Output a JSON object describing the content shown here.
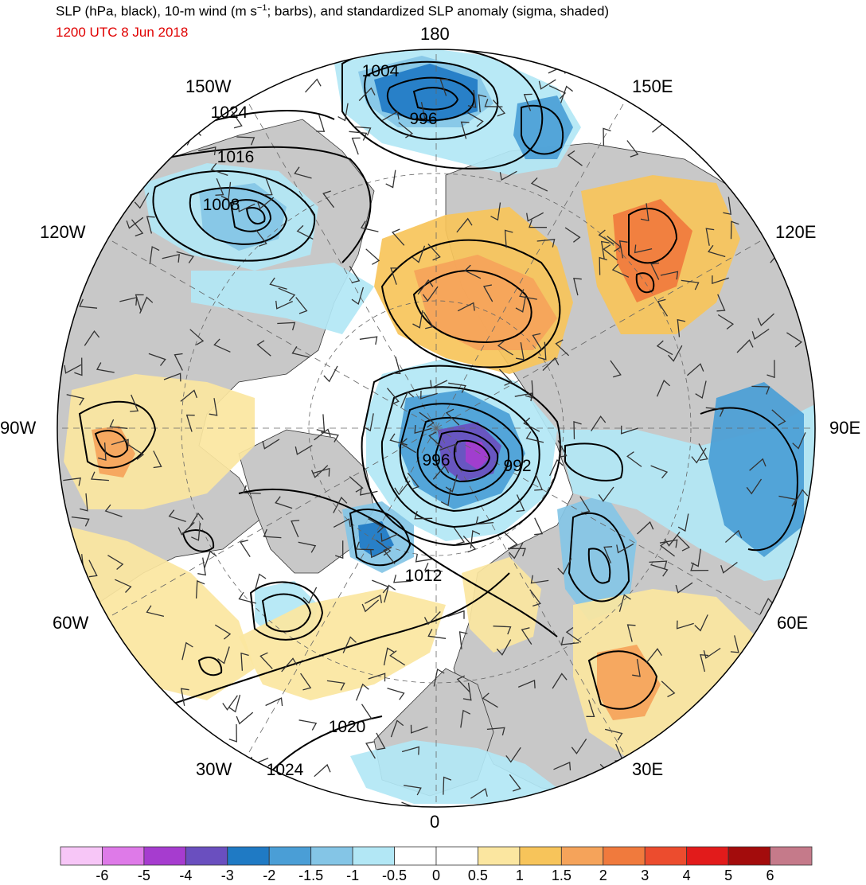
{
  "header": {
    "title_pre": "SLP (hPa, black), 10-m wind (m s",
    "title_sup": "−1",
    "title_post": "; barbs), and standardized SLP anomaly (sigma, shaded)",
    "datetime": "1200 UTC 8 Jun 2018"
  },
  "longitude_labels": [
    "180",
    "150E",
    "120E",
    "90E",
    "60E",
    "30E",
    "0",
    "30W",
    "60W",
    "90W",
    "120W",
    "150W"
  ],
  "isobar_labels": [
    "1004",
    "996",
    "1024",
    "1016",
    "1008",
    "996",
    "992",
    "1012",
    "1020",
    "1024"
  ],
  "colorbar": {
    "labels": [
      "-6",
      "-5",
      "-4",
      "-3",
      "-2",
      "-1.5",
      "-1",
      "-0.5",
      "0",
      "0.5",
      "1",
      "1.5",
      "2",
      "3",
      "4",
      "5",
      "6"
    ],
    "colors": [
      "#f7c6f7",
      "#de7ae8",
      "#a63ccf",
      "#6a4fbf",
      "#1f7ac4",
      "#4a9ed6",
      "#84c5e6",
      "#b2e7f5",
      "#ffffff",
      "#ffffff",
      "#fbe6a0",
      "#f7c45a",
      "#f5a35a",
      "#f07a3d",
      "#ec4c2e",
      "#e21b1b",
      "#a30c0c",
      "#c57a8a"
    ]
  },
  "map_colors": {
    "land": "#c8c8c8",
    "ocean": "#ffffff",
    "contour": "#000000",
    "coast": "#333333"
  }
}
